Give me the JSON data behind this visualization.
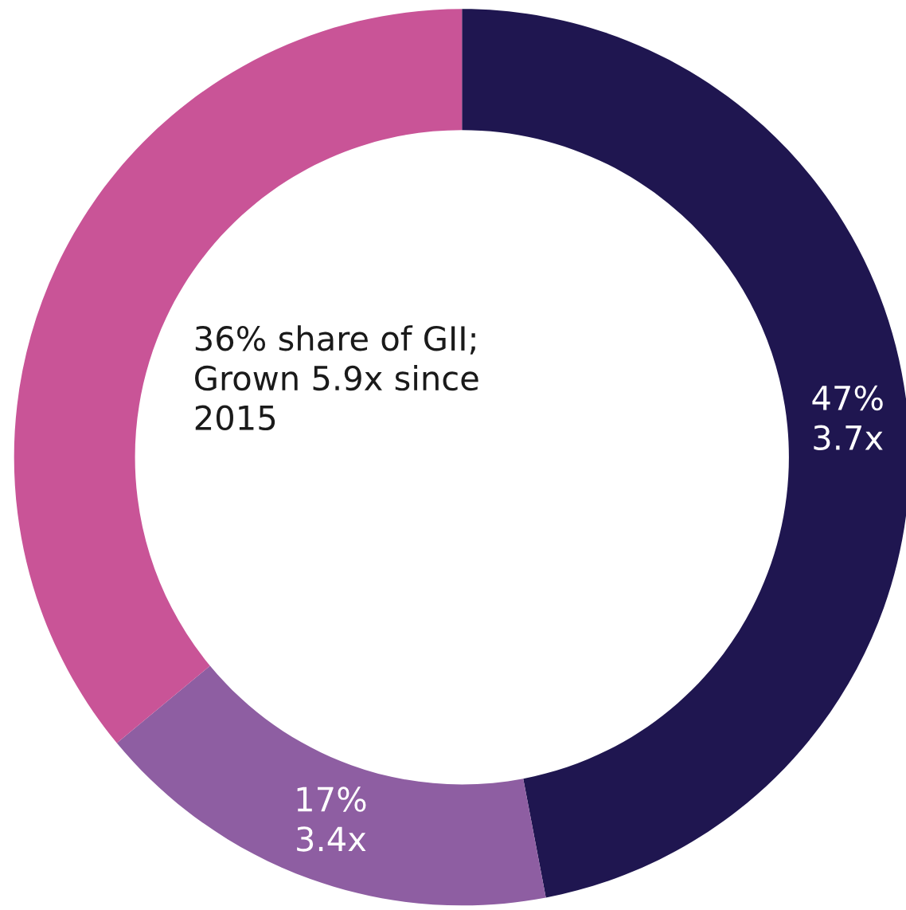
{
  "chart_data": {
    "type": "donut",
    "categories": [
      null,
      null,
      null
    ],
    "values": [
      47,
      17,
      36
    ],
    "colors": [
      "#1f1650",
      "#8e5ea2",
      "#c95497"
    ],
    "value_labels": [
      "47%\n3.7x",
      "17%\n3.4x",
      null
    ],
    "annotations": [
      "36% share of GII;\nGrown 5.9x since\n2015"
    ]
  }
}
